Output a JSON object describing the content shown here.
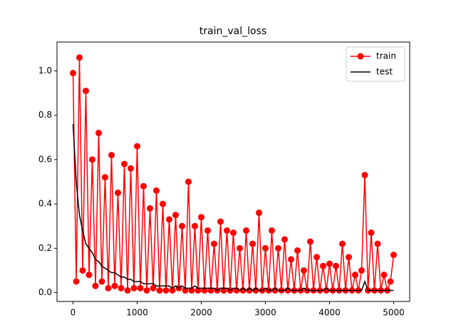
{
  "chart_data": {
    "type": "line",
    "title": "train_val_loss",
    "x": [
      0,
      50,
      100,
      150,
      200,
      250,
      300,
      350,
      400,
      450,
      500,
      550,
      600,
      650,
      700,
      750,
      800,
      850,
      900,
      950,
      1000,
      1050,
      1100,
      1150,
      1200,
      1250,
      1300,
      1350,
      1400,
      1450,
      1500,
      1550,
      1600,
      1650,
      1700,
      1750,
      1800,
      1850,
      1900,
      1950,
      2000,
      2050,
      2100,
      2150,
      2200,
      2250,
      2300,
      2350,
      2400,
      2450,
      2500,
      2550,
      2600,
      2650,
      2700,
      2750,
      2800,
      2850,
      2900,
      2950,
      3000,
      3050,
      3100,
      3150,
      3200,
      3250,
      3300,
      3350,
      3400,
      3450,
      3500,
      3550,
      3600,
      3650,
      3700,
      3750,
      3800,
      3850,
      3900,
      3950,
      4000,
      4050,
      4100,
      4150,
      4200,
      4250,
      4300,
      4350,
      4400,
      4450,
      4500,
      4550,
      4600,
      4650,
      4700,
      4750,
      4800,
      4850,
      4900,
      4950,
      5000
    ],
    "series": [
      {
        "name": "train",
        "color": "#ff0000",
        "marker": true,
        "values": [
          0.99,
          0.05,
          1.06,
          0.1,
          0.91,
          0.08,
          0.6,
          0.03,
          0.72,
          0.05,
          0.52,
          0.02,
          0.62,
          0.03,
          0.45,
          0.02,
          0.58,
          0.01,
          0.56,
          0.02,
          0.66,
          0.02,
          0.48,
          0.01,
          0.38,
          0.02,
          0.46,
          0.01,
          0.4,
          0.01,
          0.33,
          0.01,
          0.35,
          0.02,
          0.3,
          0.01,
          0.5,
          0.01,
          0.3,
          0.01,
          0.34,
          0.01,
          0.28,
          0.01,
          0.22,
          0.01,
          0.32,
          0.01,
          0.28,
          0.01,
          0.27,
          0.01,
          0.2,
          0.01,
          0.28,
          0.01,
          0.22,
          0.01,
          0.36,
          0.01,
          0.2,
          0.01,
          0.28,
          0.01,
          0.2,
          0.01,
          0.24,
          0.01,
          0.15,
          0.01,
          0.19,
          0.01,
          0.1,
          0.01,
          0.23,
          0.01,
          0.16,
          0.01,
          0.12,
          0.01,
          0.13,
          0.01,
          0.12,
          0.01,
          0.22,
          0.01,
          0.16,
          0.01,
          0.08,
          0.01,
          0.1,
          0.53,
          0.01,
          0.27,
          0.01,
          0.22,
          0.01,
          0.08,
          0.01,
          0.05,
          0.17
        ]
      },
      {
        "name": "test",
        "color": "#000000",
        "marker": false,
        "values": [
          0.76,
          0.5,
          0.35,
          0.28,
          0.22,
          0.2,
          0.18,
          0.15,
          0.14,
          0.12,
          0.11,
          0.1,
          0.09,
          0.09,
          0.08,
          0.07,
          0.07,
          0.06,
          0.06,
          0.05,
          0.05,
          0.05,
          0.04,
          0.04,
          0.04,
          0.04,
          0.03,
          0.03,
          0.03,
          0.03,
          0.03,
          0.02,
          0.03,
          0.02,
          0.03,
          0.02,
          0.02,
          0.02,
          0.03,
          0.02,
          0.02,
          0.02,
          0.02,
          0.02,
          0.02,
          0.01,
          0.02,
          0.02,
          0.02,
          0.01,
          0.02,
          0.02,
          0.01,
          0.02,
          0.01,
          0.02,
          0.01,
          0.02,
          0.01,
          0.01,
          0.02,
          0.01,
          0.01,
          0.02,
          0.01,
          0.01,
          0.01,
          0.02,
          0.01,
          0.01,
          0.01,
          0.01,
          0.02,
          0.01,
          0.01,
          0.01,
          0.01,
          0.01,
          0.01,
          0.02,
          0.01,
          0.01,
          0.01,
          0.01,
          0.01,
          0.01,
          0.01,
          0.01,
          0.01,
          0.01,
          0.01,
          0.05,
          0.01,
          0.01,
          0.01,
          0.01,
          0.01,
          0.01,
          0.01,
          0.01,
          0.01
        ]
      }
    ],
    "xlim": [
      -250,
      5250
    ],
    "xticks": [
      0,
      1000,
      2000,
      3000,
      4000,
      5000
    ],
    "ylim": [
      -0.04,
      1.13
    ],
    "yticks": [
      {
        "value": 0,
        "label": "0.0"
      },
      0.2,
      0.4,
      0.6,
      0.8,
      {
        "value": 1,
        "label": "1.0"
      }
    ],
    "legend": "upper right"
  }
}
